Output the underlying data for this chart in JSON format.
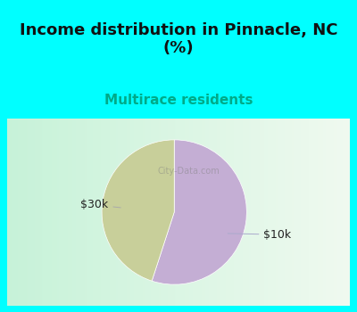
{
  "title": "Income distribution in Pinnacle, NC\n(%)",
  "subtitle": "Multirace residents",
  "slices": [
    {
      "label": "$10k",
      "value": 55,
      "color": "#c4aed4"
    },
    {
      "label": "$30k",
      "value": 45,
      "color": "#c8cf9a"
    }
  ],
  "title_fontsize": 13,
  "subtitle_fontsize": 11,
  "subtitle_color": "#00aa88",
  "title_color": "#111111",
  "bg_color": "#00ffff",
  "watermark": "City-Data.com",
  "label_fontsize": 9,
  "label_color": "#222222",
  "start_angle": 90
}
